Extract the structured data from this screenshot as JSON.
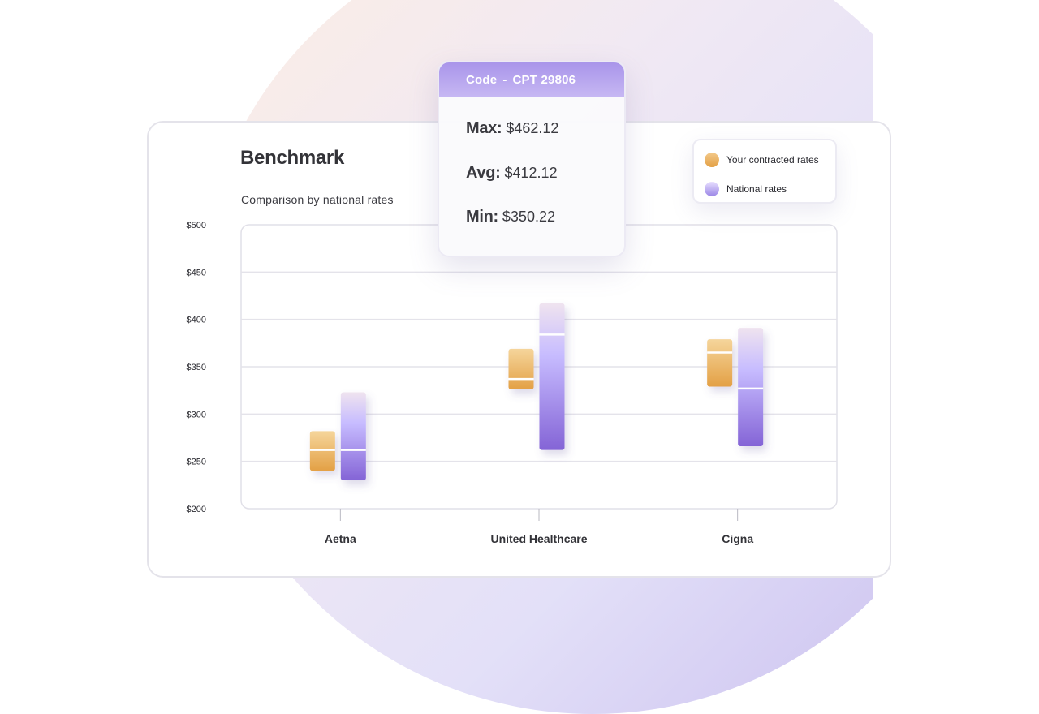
{
  "tooltip": {
    "code_label": "Code",
    "separator": "-",
    "code_value": "CPT 29806",
    "max_label": "Max:",
    "max_value": "$462.12",
    "avg_label": "Avg:",
    "avg_value": "$412.12",
    "min_label": "Min:",
    "min_value": "$350.22"
  },
  "colors": {
    "contracted_top": "#f5d59b",
    "contracted_bottom": "#e3a045",
    "national_top": "#efe3ef",
    "national_mid": "#c7bcff",
    "national_bottom": "#8464d6"
  },
  "chart_data": {
    "type": "bar",
    "title": "Benchmark",
    "subtitle": "Comparison by national rates",
    "categories": [
      "Aetna",
      "United Healthcare",
      "Cigna"
    ],
    "ylim": [
      200,
      500
    ],
    "yticks": [
      200,
      250,
      300,
      350,
      400,
      450,
      500
    ],
    "ytick_labels": [
      "$200",
      "$250",
      "$300",
      "$350",
      "$400",
      "$450",
      "$500"
    ],
    "grid": true,
    "legend_position": "top-right",
    "series": [
      {
        "name": "Your contracted rates",
        "low": [
          240,
          326,
          329
        ],
        "high": [
          282,
          369,
          379
        ],
        "median": [
          262,
          337,
          365
        ]
      },
      {
        "name": "National rates",
        "low": [
          230,
          262,
          266
        ],
        "high": [
          323,
          417,
          391
        ],
        "median": [
          262,
          384,
          327
        ]
      }
    ]
  }
}
